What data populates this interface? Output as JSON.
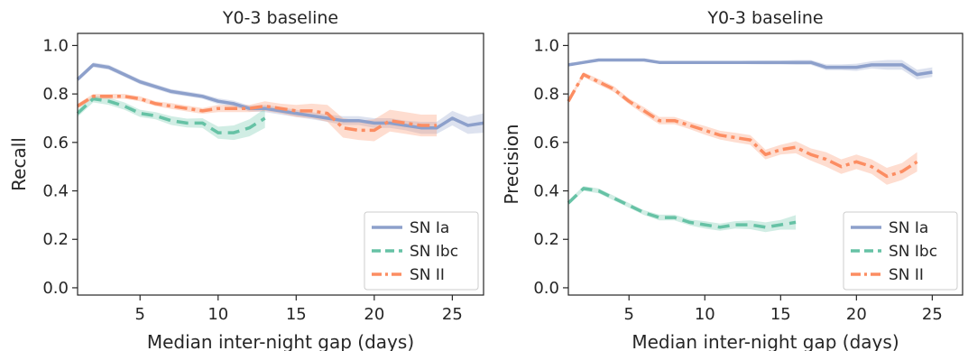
{
  "chart_data": [
    {
      "type": "line",
      "title": "Y0-3 baseline",
      "xlabel": "Median inter-night gap (days)",
      "ylabel": "Recall",
      "xlim": [
        1,
        27
      ],
      "ylim": [
        -0.03,
        1.05
      ],
      "xticks": [
        "5",
        "10",
        "15",
        "20",
        "25"
      ],
      "yticks": [
        "0.0",
        "0.2",
        "0.4",
        "0.6",
        "0.8",
        "1.0"
      ],
      "grid": false,
      "legend_position": "lower-right",
      "series": [
        {
          "name": "SN Ia",
          "color": "#8da0cb",
          "dash": "solid",
          "x": [
            1,
            2,
            3,
            4,
            5,
            6,
            7,
            8,
            9,
            10,
            11,
            12,
            13,
            14,
            15,
            16,
            17,
            18,
            19,
            20,
            21,
            22,
            23,
            24,
            25,
            26,
            27
          ],
          "y": [
            0.86,
            0.92,
            0.91,
            0.88,
            0.85,
            0.83,
            0.81,
            0.8,
            0.79,
            0.77,
            0.76,
            0.74,
            0.74,
            0.73,
            0.72,
            0.71,
            0.7,
            0.69,
            0.69,
            0.68,
            0.68,
            0.67,
            0.66,
            0.66,
            0.7,
            0.67,
            0.68
          ],
          "band": [
            0.01,
            0.01,
            0.01,
            0.01,
            0.01,
            0.01,
            0.01,
            0.01,
            0.01,
            0.012,
            0.012,
            0.012,
            0.015,
            0.015,
            0.015,
            0.015,
            0.015,
            0.018,
            0.018,
            0.02,
            0.02,
            0.02,
            0.025,
            0.025,
            0.03,
            0.035,
            0.04
          ]
        },
        {
          "name": "SN Ibc",
          "color": "#66c2a5",
          "dash": "dashed",
          "x": [
            1,
            2,
            3,
            4,
            5,
            6,
            7,
            8,
            9,
            10,
            11,
            12,
            13
          ],
          "y": [
            0.72,
            0.78,
            0.77,
            0.75,
            0.72,
            0.71,
            0.69,
            0.68,
            0.68,
            0.64,
            0.64,
            0.66,
            0.7
          ],
          "band": [
            0.015,
            0.015,
            0.015,
            0.015,
            0.015,
            0.015,
            0.018,
            0.018,
            0.02,
            0.025,
            0.03,
            0.035,
            0.04
          ]
        },
        {
          "name": "SN II",
          "color": "#fc8d62",
          "dash": "dashdot",
          "x": [
            1,
            2,
            3,
            4,
            5,
            6,
            7,
            8,
            9,
            10,
            11,
            12,
            13,
            14,
            15,
            16,
            17,
            18,
            19,
            20,
            21,
            22,
            23,
            24
          ],
          "y": [
            0.75,
            0.79,
            0.79,
            0.79,
            0.78,
            0.76,
            0.75,
            0.74,
            0.73,
            0.74,
            0.74,
            0.74,
            0.75,
            0.74,
            0.73,
            0.73,
            0.72,
            0.66,
            0.65,
            0.65,
            0.69,
            0.68,
            0.67,
            0.67
          ],
          "band": [
            0.01,
            0.01,
            0.01,
            0.01,
            0.01,
            0.01,
            0.012,
            0.012,
            0.012,
            0.015,
            0.015,
            0.015,
            0.02,
            0.02,
            0.025,
            0.03,
            0.035,
            0.04,
            0.04,
            0.045,
            0.045,
            0.045,
            0.045,
            0.045
          ]
        }
      ]
    },
    {
      "type": "line",
      "title": "Y0-3 baseline",
      "xlabel": "Median inter-night gap (days)",
      "ylabel": "Precision",
      "xlim": [
        1,
        27
      ],
      "ylim": [
        -0.03,
        1.05
      ],
      "xticks": [
        "5",
        "10",
        "15",
        "20",
        "25"
      ],
      "yticks": [
        "0.0",
        "0.2",
        "0.4",
        "0.6",
        "0.8",
        "1.0"
      ],
      "grid": false,
      "legend_position": "lower-right",
      "series": [
        {
          "name": "SN Ia",
          "color": "#8da0cb",
          "dash": "solid",
          "x": [
            1,
            2,
            3,
            4,
            5,
            6,
            7,
            8,
            9,
            10,
            11,
            12,
            13,
            14,
            15,
            16,
            17,
            18,
            19,
            20,
            21,
            22,
            23,
            24,
            25
          ],
          "y": [
            0.92,
            0.93,
            0.94,
            0.94,
            0.94,
            0.94,
            0.93,
            0.93,
            0.93,
            0.93,
            0.93,
            0.93,
            0.93,
            0.93,
            0.93,
            0.93,
            0.93,
            0.91,
            0.91,
            0.91,
            0.92,
            0.92,
            0.92,
            0.88,
            0.89
          ],
          "band": [
            0.005,
            0.005,
            0.005,
            0.005,
            0.005,
            0.005,
            0.005,
            0.005,
            0.005,
            0.006,
            0.006,
            0.006,
            0.007,
            0.008,
            0.008,
            0.01,
            0.01,
            0.012,
            0.012,
            0.015,
            0.015,
            0.02,
            0.02,
            0.02,
            0.02
          ]
        },
        {
          "name": "SN Ibc",
          "color": "#66c2a5",
          "dash": "dashed",
          "x": [
            1,
            2,
            3,
            4,
            5,
            6,
            7,
            8,
            9,
            10,
            11,
            12,
            13,
            14,
            15,
            16
          ],
          "y": [
            0.35,
            0.41,
            0.4,
            0.37,
            0.34,
            0.31,
            0.29,
            0.29,
            0.27,
            0.26,
            0.25,
            0.26,
            0.26,
            0.25,
            0.26,
            0.27
          ],
          "band": [
            0.01,
            0.01,
            0.01,
            0.01,
            0.01,
            0.01,
            0.012,
            0.012,
            0.012,
            0.015,
            0.015,
            0.015,
            0.018,
            0.02,
            0.02,
            0.03
          ]
        },
        {
          "name": "SN II",
          "color": "#fc8d62",
          "dash": "dashdot",
          "x": [
            1,
            2,
            3,
            4,
            5,
            6,
            7,
            8,
            9,
            10,
            11,
            12,
            13,
            14,
            15,
            16,
            17,
            18,
            19,
            20,
            21,
            22,
            23,
            24
          ],
          "y": [
            0.77,
            0.88,
            0.85,
            0.82,
            0.77,
            0.73,
            0.69,
            0.69,
            0.67,
            0.65,
            0.63,
            0.62,
            0.61,
            0.55,
            0.57,
            0.58,
            0.55,
            0.53,
            0.5,
            0.52,
            0.5,
            0.46,
            0.48,
            0.52
          ],
          "band": [
            0.01,
            0.01,
            0.012,
            0.012,
            0.012,
            0.015,
            0.015,
            0.015,
            0.015,
            0.018,
            0.018,
            0.02,
            0.02,
            0.02,
            0.02,
            0.025,
            0.025,
            0.03,
            0.03,
            0.03,
            0.03,
            0.035,
            0.035,
            0.04
          ]
        }
      ]
    }
  ]
}
